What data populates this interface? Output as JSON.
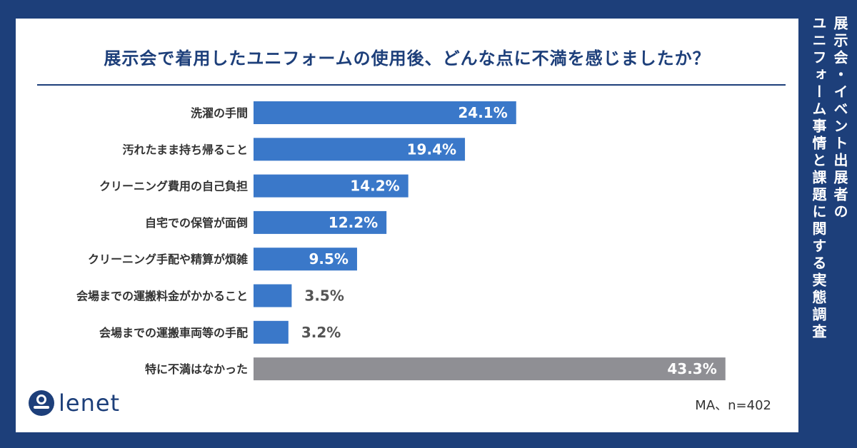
{
  "title": "展示会で着用したユニフォームの使用後、どんな点に不満を感じましたか？",
  "note": "MA、n=402",
  "logo": {
    "text": "lenet",
    "icon": "lenet-logo-icon"
  },
  "side_title": {
    "line1": "展示会・イベント出展者の",
    "line2": "ユニフォーム事情と課題に関する実態調査"
  },
  "colors": {
    "background": "#1d3f7a",
    "bar": "#3a78c9",
    "bar_none": "#8f8f94",
    "title": "#1d3f7a"
  },
  "chart_data": {
    "type": "bar",
    "orientation": "horizontal",
    "categories": [
      "洗濯の手間",
      "汚れたまま持ち帰ること",
      "クリーニング費用の自己負担",
      "自宅での保管が面倒",
      "クリーニング手配や精算が煩雑",
      "会場までの運搬料金がかかること",
      "会場までの運搬車両等の手配",
      "特に不満はなかった"
    ],
    "values": [
      24.1,
      19.4,
      14.2,
      12.2,
      9.5,
      3.5,
      3.2,
      43.3
    ],
    "value_labels": [
      "24.1%",
      "19.4%",
      "14.2%",
      "12.2%",
      "9.5%",
      "3.5%",
      "3.2%",
      "43.3%"
    ],
    "title": "展示会で着用したユニフォームの使用後、どんな点に不満を感じましたか？",
    "xlabel": "",
    "ylabel": "",
    "grid": false
  }
}
